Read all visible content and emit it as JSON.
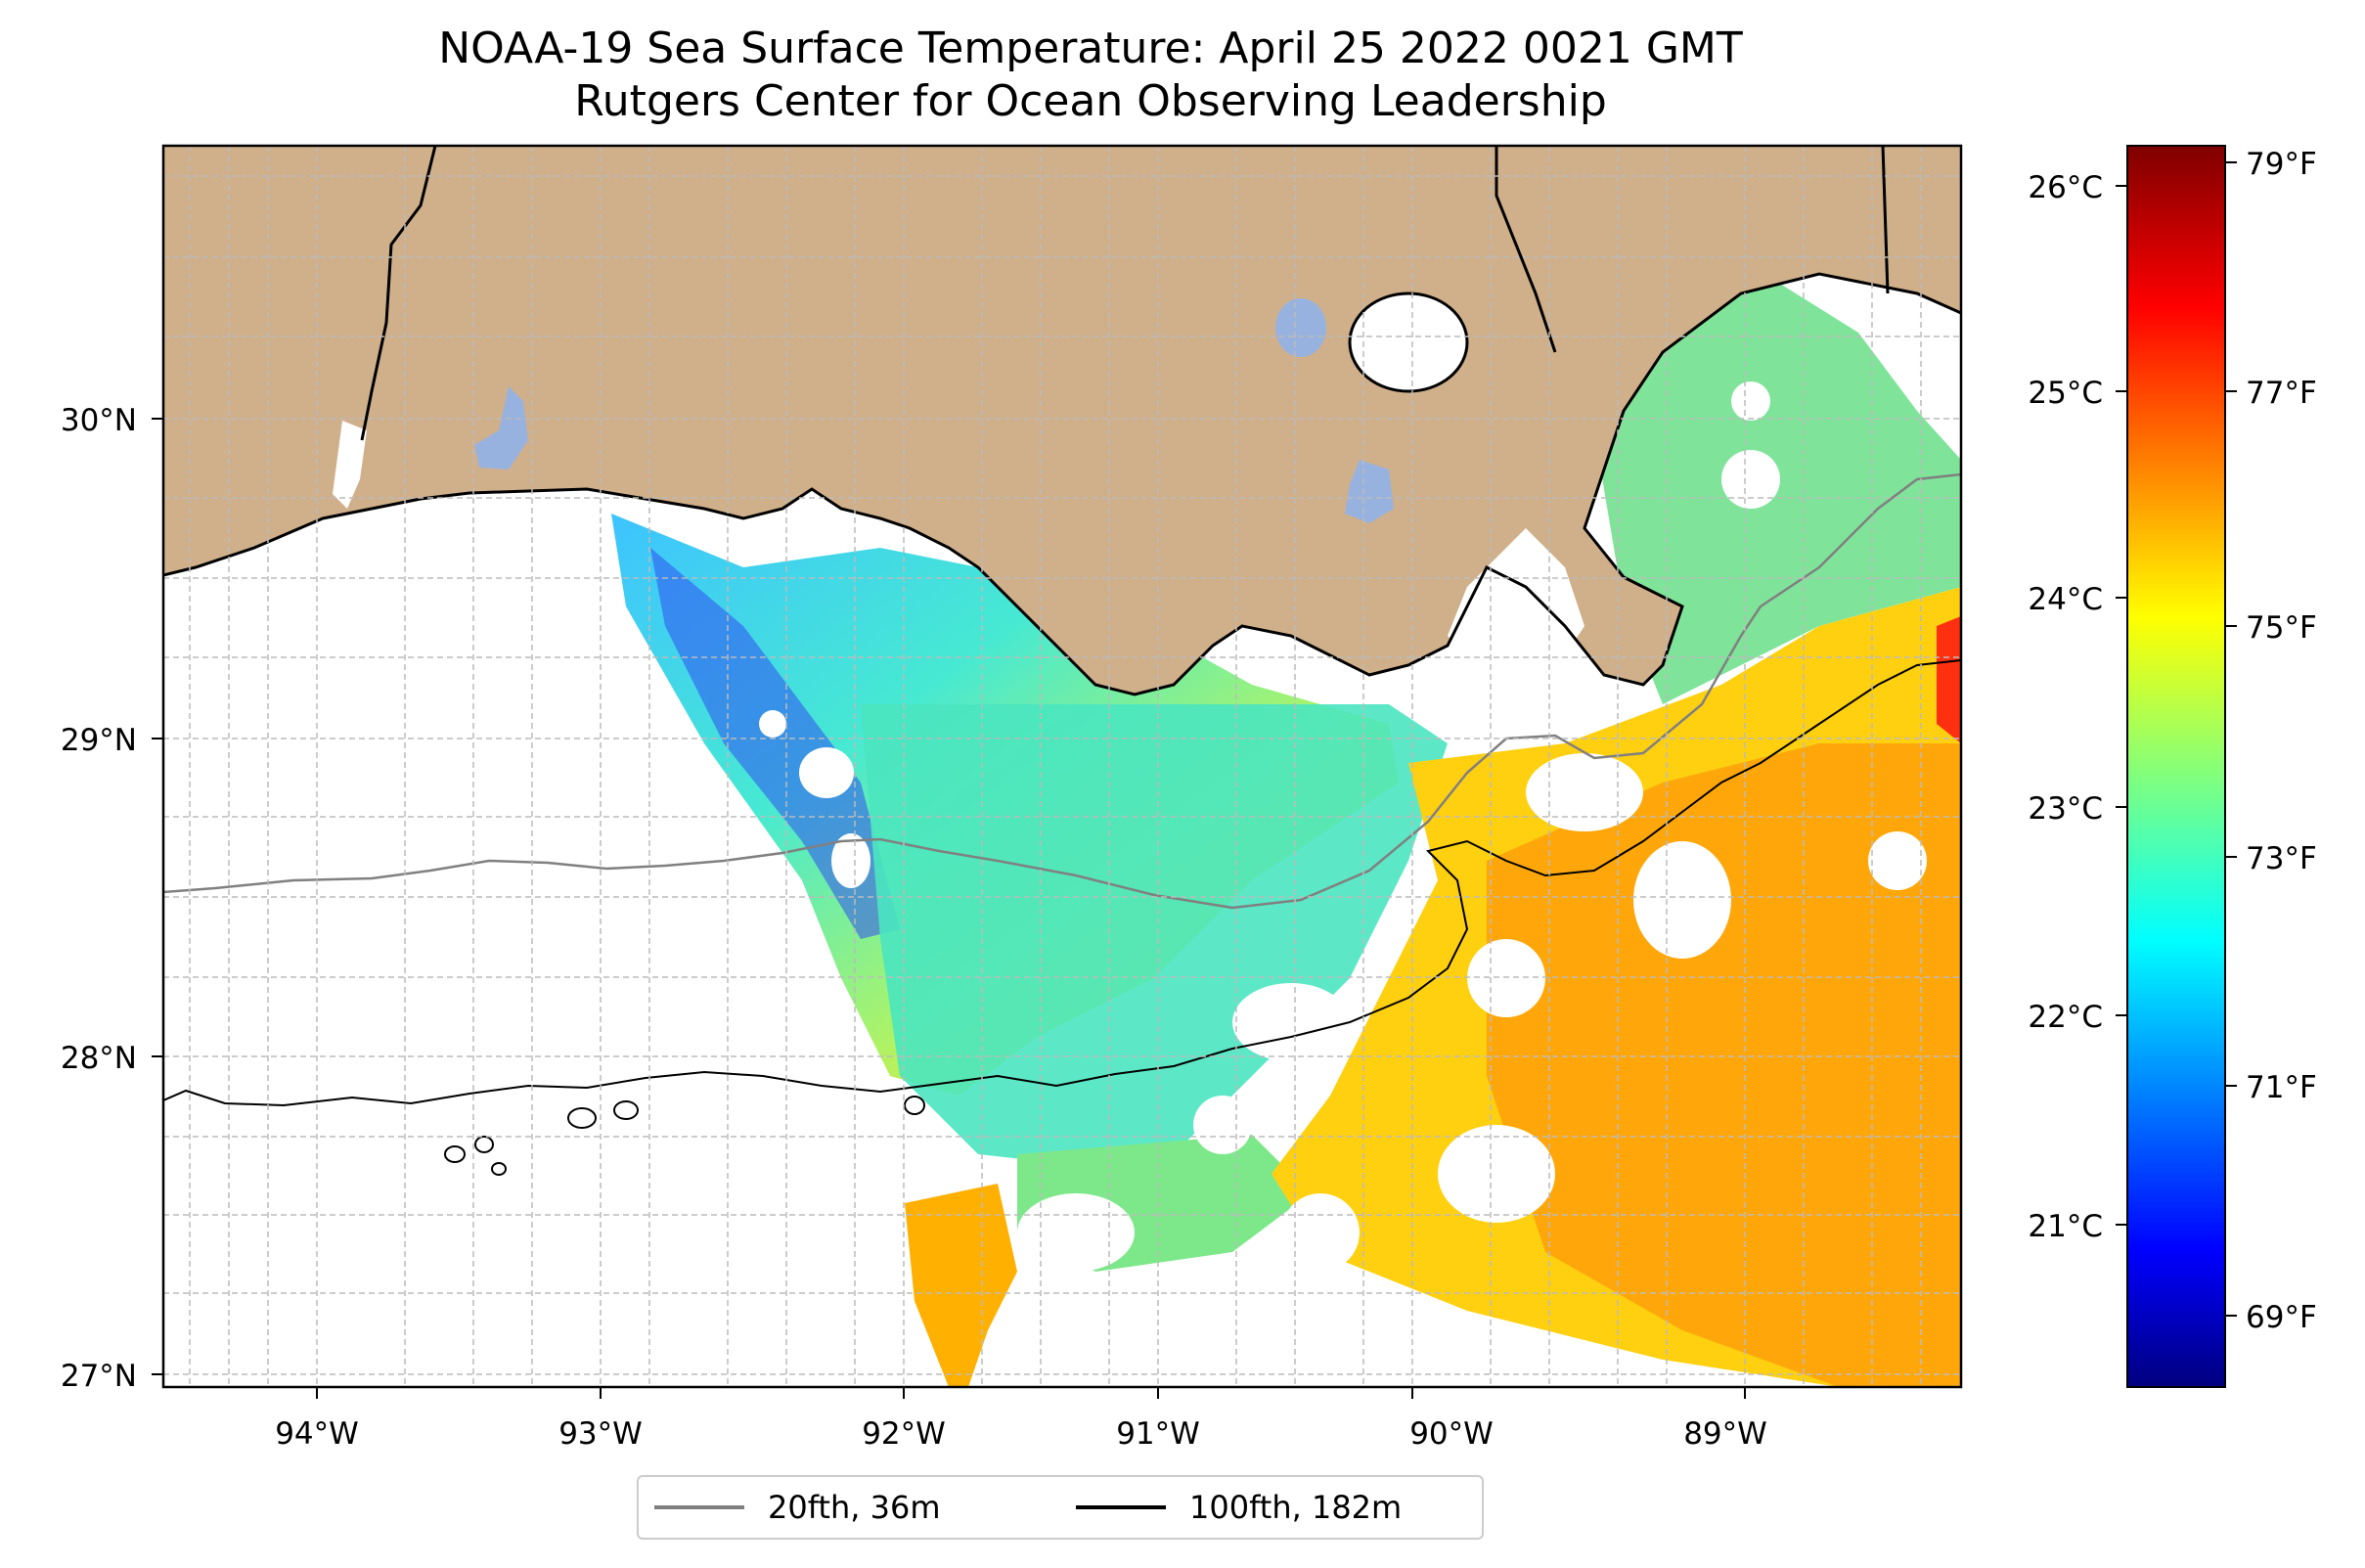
{
  "title": "NOAA-19 Sea Surface Temperature: April 25 2022 0021 GMT",
  "subtitle": "Rutgers Center for Ocean Observing Leadership",
  "axes": {
    "x_ticks": [
      "94°W",
      "93°W",
      "92°W",
      "91°W",
      "90°W",
      "89°W"
    ],
    "y_ticks": [
      "30°N",
      "29°N",
      "28°N",
      "27°N"
    ]
  },
  "colorbar": {
    "celsius_ticks": [
      "26°C",
      "25°C",
      "24°C",
      "23°C",
      "22°C",
      "21°C"
    ],
    "fahrenheit_ticks": [
      "79°F",
      "77°F",
      "75°F",
      "73°F",
      "71°F",
      "69°F"
    ],
    "colormap": "jet"
  },
  "legend": {
    "items": [
      {
        "label": "20fth, 36m",
        "color": "#808080"
      },
      {
        "label": "100fth, 182m",
        "color": "#000000"
      }
    ]
  },
  "colors": {
    "land": "#cfb08a",
    "lakes": "#98b2e0",
    "gridlines": "#bbbbbb"
  }
}
